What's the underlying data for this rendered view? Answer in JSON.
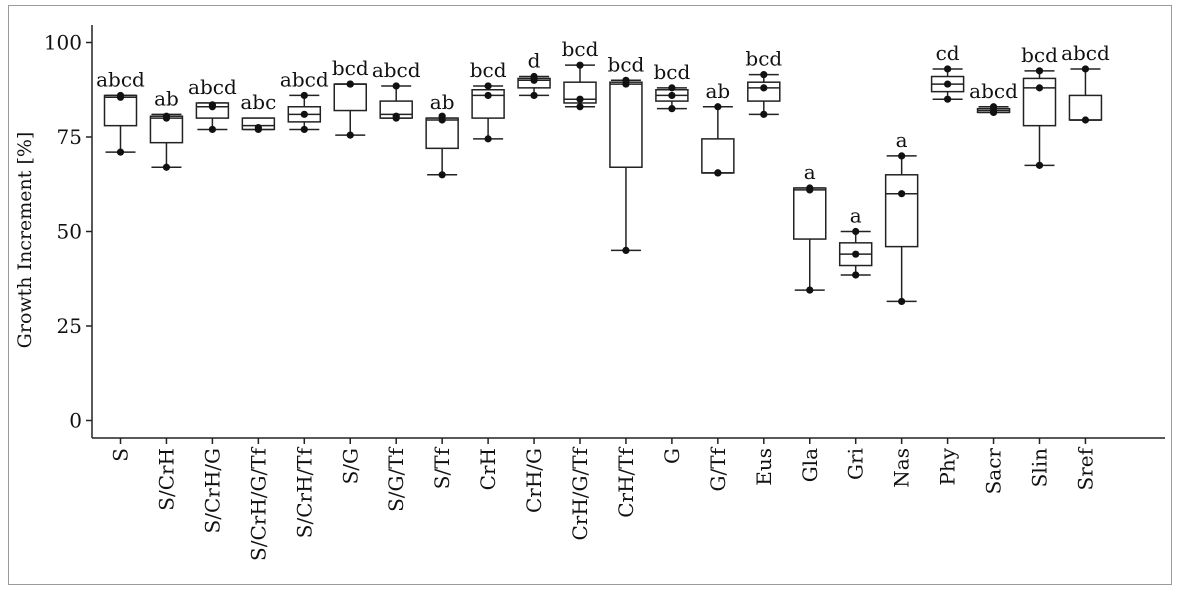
{
  "chart_data": {
    "type": "box",
    "title": "",
    "xlabel": "",
    "ylabel": "Growth Increment [%]",
    "ylim": [
      0,
      100
    ],
    "yticks": [
      0,
      25,
      50,
      75,
      100
    ],
    "grid": false,
    "legend": "none",
    "categories": [
      "S",
      "S/CrH",
      "S/CrH/G",
      "S/CrH/G/Tf",
      "S/CrH/Tf",
      "S/G",
      "S/G/Tf",
      "S/Tf",
      "CrH",
      "CrH/G",
      "CrH/G/Tf",
      "CrH/Tf",
      "G",
      "G/Tf",
      "Eus",
      "Gla",
      "Gri",
      "Nas",
      "Phy",
      "Sacr",
      "Slin",
      "Sref"
    ],
    "letters": [
      "abcd",
      "ab",
      "abcd",
      "abc",
      "abcd",
      "bcd",
      "abcd",
      "ab",
      "bcd",
      "d",
      "bcd",
      "bcd",
      "bcd",
      "ab",
      "bcd",
      "a",
      "a",
      "a",
      "cd",
      "abcd",
      "bcd",
      "abcd"
    ],
    "boxes": [
      {
        "min": 71,
        "q1": 78,
        "median": 85.5,
        "q3": 86,
        "max": 86,
        "points": [
          71,
          85.5,
          86
        ]
      },
      {
        "min": 67,
        "q1": 73.5,
        "median": 80,
        "q3": 80.5,
        "max": 81,
        "points": [
          67,
          80,
          80.5
        ]
      },
      {
        "min": 77,
        "q1": 80,
        "median": 83,
        "q3": 84,
        "max": 84,
        "points": [
          77,
          83,
          83.5
        ]
      },
      {
        "min": 77,
        "q1": 77,
        "median": 78,
        "q3": 80,
        "max": 80,
        "points": [
          77,
          77.5
        ]
      },
      {
        "min": 77,
        "q1": 79,
        "median": 81,
        "q3": 83,
        "max": 86,
        "points": [
          77,
          81,
          86
        ]
      },
      {
        "min": 75.5,
        "q1": 82,
        "median": 89,
        "q3": 89,
        "max": 89,
        "points": [
          75.5,
          89,
          89
        ]
      },
      {
        "min": 80,
        "q1": 80,
        "median": 81,
        "q3": 84.5,
        "max": 88.5,
        "points": [
          80,
          80.5,
          88.5
        ]
      },
      {
        "min": 65,
        "q1": 72,
        "median": 79.5,
        "q3": 80,
        "max": 80,
        "points": [
          65,
          79.5,
          80.5
        ]
      },
      {
        "min": 74.5,
        "q1": 80,
        "median": 86,
        "q3": 87.5,
        "max": 88.5,
        "points": [
          74.5,
          86,
          88.5
        ]
      },
      {
        "min": 86,
        "q1": 88,
        "median": 90,
        "q3": 90.5,
        "max": 91,
        "points": [
          86,
          90,
          91
        ]
      },
      {
        "min": 83,
        "q1": 84,
        "median": 85,
        "q3": 89.5,
        "max": 94,
        "points": [
          83,
          85,
          94
        ]
      },
      {
        "min": 45,
        "q1": 67,
        "median": 89,
        "q3": 89.5,
        "max": 90,
        "points": [
          45,
          89,
          90
        ]
      },
      {
        "min": 82.5,
        "q1": 84.5,
        "median": 86,
        "q3": 87.5,
        "max": 88,
        "points": [
          82.5,
          86,
          88
        ]
      },
      {
        "min": 65.5,
        "q1": 65.5,
        "median": 65.5,
        "q3": 74.5,
        "max": 83,
        "points": [
          65.5,
          65.5,
          83
        ]
      },
      {
        "min": 81,
        "q1": 84.5,
        "median": 88,
        "q3": 89.5,
        "max": 91.5,
        "points": [
          81,
          88,
          91.5
        ]
      },
      {
        "min": 34.5,
        "q1": 48,
        "median": 61,
        "q3": 61.5,
        "max": 61.5,
        "points": [
          34.5,
          61,
          61.5
        ]
      },
      {
        "min": 38.5,
        "q1": 41,
        "median": 44,
        "q3": 47,
        "max": 50,
        "points": [
          38.5,
          44,
          50
        ]
      },
      {
        "min": 31.5,
        "q1": 46,
        "median": 60,
        "q3": 65,
        "max": 70,
        "points": [
          31.5,
          60,
          70
        ]
      },
      {
        "min": 85,
        "q1": 87,
        "median": 89,
        "q3": 91,
        "max": 93,
        "points": [
          85,
          89,
          93
        ]
      },
      {
        "min": 81.5,
        "q1": 81.5,
        "median": 82,
        "q3": 82.5,
        "max": 83,
        "points": [
          81.5,
          82,
          83
        ]
      },
      {
        "min": 67.5,
        "q1": 78,
        "median": 88,
        "q3": 90.5,
        "max": 92.5,
        "points": [
          67.5,
          88,
          92.5
        ]
      },
      {
        "min": 79.5,
        "q1": 79.5,
        "median": 79.5,
        "q3": 86,
        "max": 93,
        "points": [
          79.5,
          93
        ]
      }
    ]
  }
}
